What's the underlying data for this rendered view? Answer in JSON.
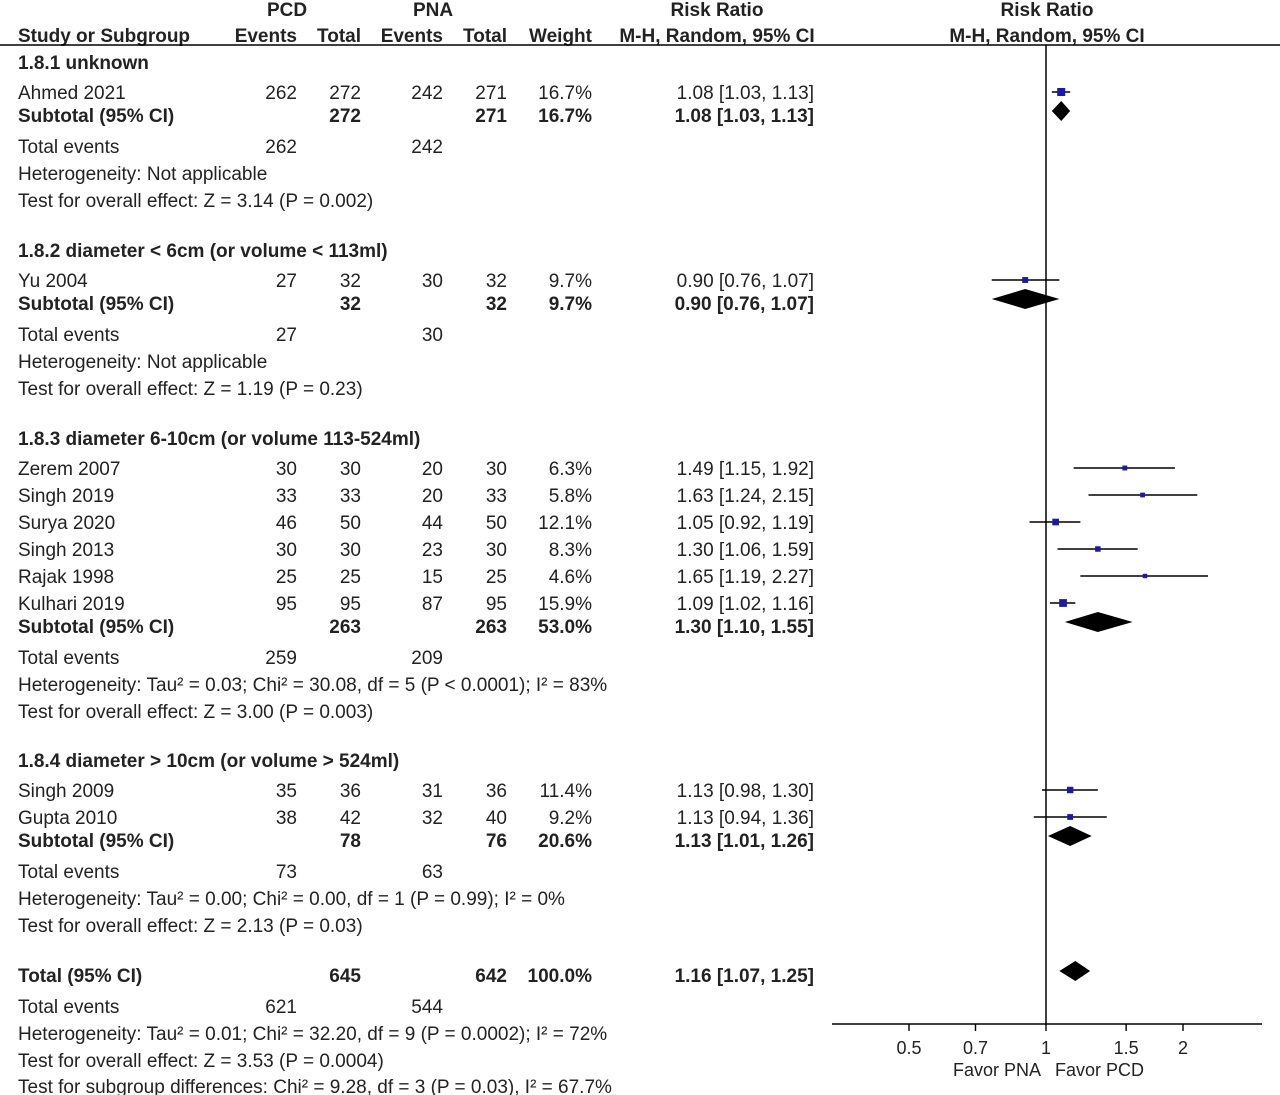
{
  "chart_data": {
    "type": "forest",
    "header": {
      "group1": "PCD",
      "group2": "PNA",
      "col_study": "Study or Subgroup",
      "col_events": "Events",
      "col_total": "Total",
      "col_weight": "Weight",
      "rr_title": "Risk Ratio",
      "rr_method": "M-H, Random, 95% CI",
      "plot_title": "Risk Ratio",
      "plot_method": "M-H, Random, 95% CI"
    },
    "subgroups": [
      {
        "title": "1.8.1 unknown",
        "studies": [
          {
            "name": "Ahmed 2021",
            "e1": "262",
            "n1": "272",
            "e2": "242",
            "n2": "271",
            "weight": "16.7%",
            "ci_text": "1.08 [1.03, 1.13]",
            "rr": 1.08,
            "lo": 1.03,
            "hi": 1.13
          }
        ],
        "subtotal": {
          "label": "Subtotal (95% CI)",
          "n1": "272",
          "n2": "271",
          "weight": "16.7%",
          "ci_text": "1.08 [1.03, 1.13]",
          "rr": 1.08,
          "lo": 1.03,
          "hi": 1.13
        },
        "total_events": {
          "label": "Total events",
          "e1": "262",
          "e2": "242"
        },
        "heterogeneity": "Heterogeneity: Not applicable",
        "overall": "Test for overall effect: Z = 3.14 (P = 0.002)"
      },
      {
        "title": "1.8.2 diameter < 6cm (or volume < 113ml)",
        "studies": [
          {
            "name": "Yu 2004",
            "e1": "27",
            "n1": "32",
            "e2": "30",
            "n2": "32",
            "weight": "9.7%",
            "ci_text": "0.90 [0.76, 1.07]",
            "rr": 0.9,
            "lo": 0.76,
            "hi": 1.07
          }
        ],
        "subtotal": {
          "label": "Subtotal (95% CI)",
          "n1": "32",
          "n2": "32",
          "weight": "9.7%",
          "ci_text": "0.90 [0.76, 1.07]",
          "rr": 0.9,
          "lo": 0.76,
          "hi": 1.07
        },
        "total_events": {
          "label": "Total events",
          "e1": "27",
          "e2": "30"
        },
        "heterogeneity": "Heterogeneity: Not applicable",
        "overall": "Test for overall effect: Z = 1.19 (P = 0.23)"
      },
      {
        "title": "1.8.3 diameter 6-10cm (or volume 113-524ml)",
        "studies": [
          {
            "name": "Zerem 2007",
            "e1": "30",
            "n1": "30",
            "e2": "20",
            "n2": "30",
            "weight": "6.3%",
            "ci_text": "1.49 [1.15, 1.92]",
            "rr": 1.49,
            "lo": 1.15,
            "hi": 1.92
          },
          {
            "name": "Singh 2019",
            "e1": "33",
            "n1": "33",
            "e2": "20",
            "n2": "33",
            "weight": "5.8%",
            "ci_text": "1.63 [1.24, 2.15]",
            "rr": 1.63,
            "lo": 1.24,
            "hi": 2.15
          },
          {
            "name": "Surya 2020",
            "e1": "46",
            "n1": "50",
            "e2": "44",
            "n2": "50",
            "weight": "12.1%",
            "ci_text": "1.05 [0.92, 1.19]",
            "rr": 1.05,
            "lo": 0.92,
            "hi": 1.19
          },
          {
            "name": "Singh 2013",
            "e1": "30",
            "n1": "30",
            "e2": "23",
            "n2": "30",
            "weight": "8.3%",
            "ci_text": "1.30 [1.06, 1.59]",
            "rr": 1.3,
            "lo": 1.06,
            "hi": 1.59
          },
          {
            "name": "Rajak 1998",
            "e1": "25",
            "n1": "25",
            "e2": "15",
            "n2": "25",
            "weight": "4.6%",
            "ci_text": "1.65 [1.19, 2.27]",
            "rr": 1.65,
            "lo": 1.19,
            "hi": 2.27
          },
          {
            "name": "Kulhari 2019",
            "e1": "95",
            "n1": "95",
            "e2": "87",
            "n2": "95",
            "weight": "15.9%",
            "ci_text": "1.09 [1.02, 1.16]",
            "rr": 1.09,
            "lo": 1.02,
            "hi": 1.16
          }
        ],
        "subtotal": {
          "label": "Subtotal (95% CI)",
          "n1": "263",
          "n2": "263",
          "weight": "53.0%",
          "ci_text": "1.30 [1.10, 1.55]",
          "rr": 1.3,
          "lo": 1.1,
          "hi": 1.55
        },
        "total_events": {
          "label": "Total events",
          "e1": "259",
          "e2": "209"
        },
        "heterogeneity": "Heterogeneity: Tau² = 0.03; Chi² = 30.08, df = 5 (P < 0.0001); I² = 83%",
        "overall": "Test for overall effect: Z = 3.00 (P = 0.003)"
      },
      {
        "title": "1.8.4 diameter > 10cm (or volume > 524ml)",
        "studies": [
          {
            "name": "Singh 2009",
            "e1": "35",
            "n1": "36",
            "e2": "31",
            "n2": "36",
            "weight": "11.4%",
            "ci_text": "1.13 [0.98, 1.30]",
            "rr": 1.13,
            "lo": 0.98,
            "hi": 1.3
          },
          {
            "name": "Gupta 2010",
            "e1": "38",
            "n1": "42",
            "e2": "32",
            "n2": "40",
            "weight": "9.2%",
            "ci_text": "1.13 [0.94, 1.36]",
            "rr": 1.13,
            "lo": 0.94,
            "hi": 1.36
          }
        ],
        "subtotal": {
          "label": "Subtotal (95% CI)",
          "n1": "78",
          "n2": "76",
          "weight": "20.6%",
          "ci_text": "1.13 [1.01, 1.26]",
          "rr": 1.13,
          "lo": 1.01,
          "hi": 1.26
        },
        "total_events": {
          "label": "Total events",
          "e1": "73",
          "e2": "63"
        },
        "heterogeneity": "Heterogeneity: Tau² = 0.00; Chi² = 0.00, df = 1 (P = 0.99); I² = 0%",
        "overall": "Test for overall effect: Z = 2.13 (P = 0.03)"
      }
    ],
    "total": {
      "label": "Total (95% CI)",
      "n1": "645",
      "n2": "642",
      "weight": "100.0%",
      "ci_text": "1.16 [1.07, 1.25]",
      "rr": 1.16,
      "lo": 1.07,
      "hi": 1.25
    },
    "total_events": {
      "label": "Total events",
      "e1": "621",
      "e2": "544"
    },
    "heterogeneity": "Heterogeneity: Tau² = 0.01; Chi² = 32.20, df = 9 (P = 0.0002); I² = 72%",
    "overall": "Test for overall effect: Z = 3.53 (P = 0.0004)",
    "subgroup_test": "Test for subgroup differences: Chi² = 9.28, df = 3 (P = 0.03), I² = 67.7%",
    "x_axis": {
      "scale": "log",
      "range": [
        0.4,
        2.6
      ],
      "ticks": [
        0.5,
        0.7,
        1,
        1.5,
        2
      ],
      "tick_labels": [
        "0.5",
        "0.7",
        "1",
        "1.5",
        "2"
      ],
      "favor_left": "Favor PNA",
      "favor_right": "Favor PCD"
    },
    "colors": {
      "study_square": "#1a1aa6",
      "diamond": "#000000",
      "line": "#000000"
    }
  }
}
